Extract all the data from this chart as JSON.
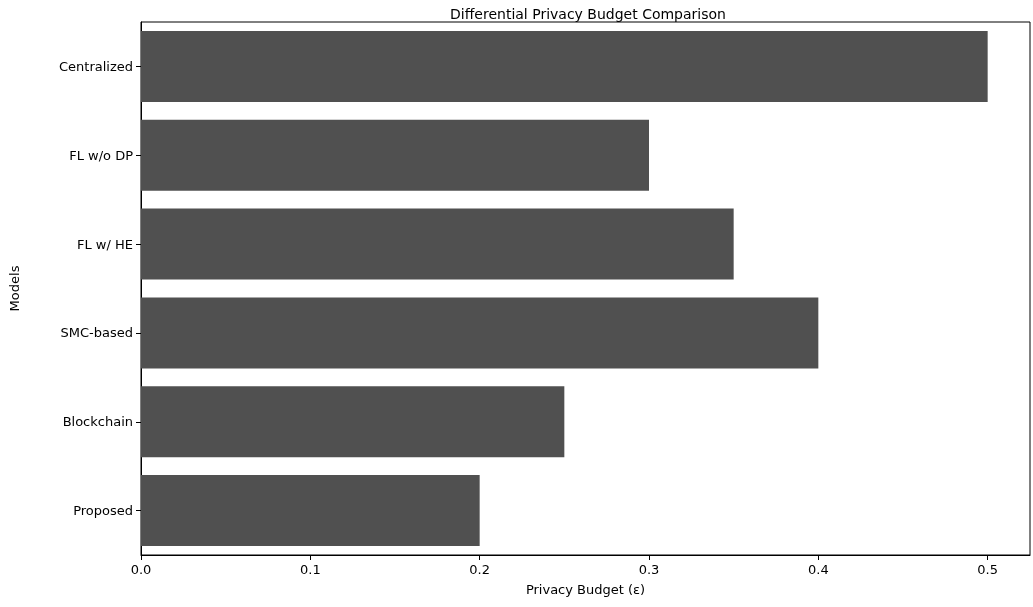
{
  "chart_data": {
    "type": "bar",
    "orientation": "horizontal",
    "title": "Differential Privacy Budget Comparison",
    "xlabel": "Privacy Budget (ε)",
    "ylabel": "Models",
    "categories": [
      "Centralized",
      "FL w/o DP",
      "FL w/ HE",
      "SMC-based",
      "Blockchain",
      "Proposed"
    ],
    "values": [
      0.5,
      0.3,
      0.35,
      0.4,
      0.25,
      0.2
    ],
    "color": "#505050",
    "xlim": [
      0,
      0.525
    ],
    "xticks": [
      {
        "value": 0,
        "label": "0.0"
      },
      {
        "value": 0.1,
        "label": "0.1"
      },
      {
        "value": 0.2,
        "label": "0.2"
      },
      {
        "value": 0.3,
        "label": "0.3"
      },
      {
        "value": 0.4,
        "label": "0.4"
      },
      {
        "value": 0.5,
        "label": "0.5"
      }
    ],
    "grid": false
  }
}
